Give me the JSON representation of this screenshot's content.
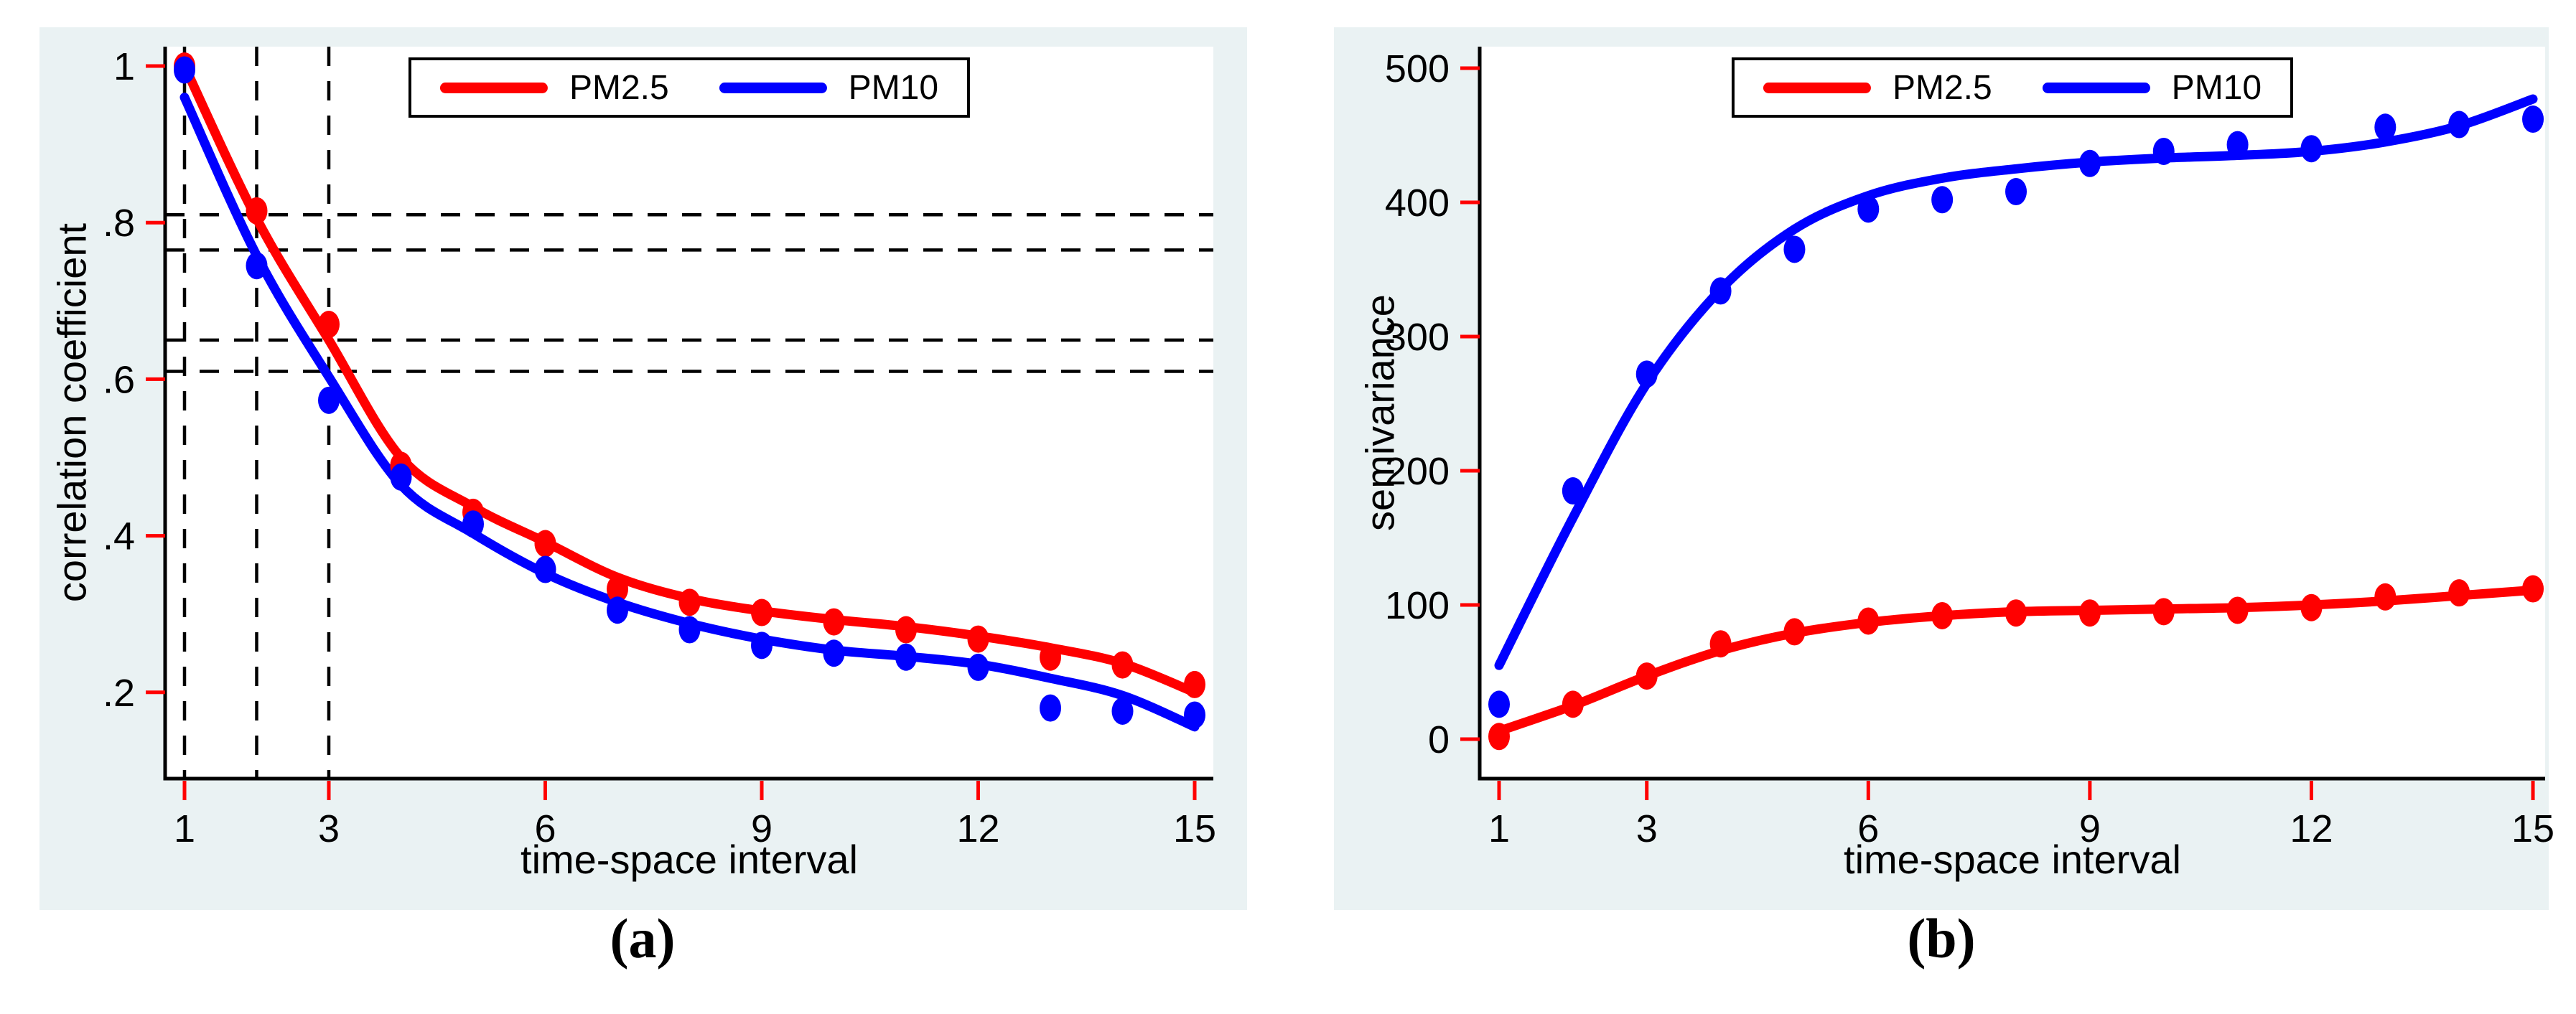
{
  "figure": {
    "caption_a": "(a)",
    "caption_b": "(b)",
    "colors": {
      "pm25": "#ff0000",
      "pm10": "#0000ff",
      "panel_background": "#eaf2f3",
      "plot_background": "#ffffff",
      "axis": "#000000",
      "tick_mark": "#ff0000",
      "reference_line": "#000000"
    }
  },
  "chart_data": [
    {
      "id": "a",
      "type": "scatter",
      "title": "",
      "xlabel": "time-space interval",
      "ylabel": "correlation coefficient",
      "x": [
        1,
        2,
        3,
        4,
        5,
        6,
        7,
        8,
        9,
        10,
        11,
        12,
        13,
        14,
        15
      ],
      "xtick_values": [
        1,
        3,
        6,
        9,
        12,
        15
      ],
      "xtick_labels": [
        "1",
        "3",
        "6",
        "9",
        "12",
        "15"
      ],
      "ytick_values": [
        0.2,
        0.4,
        0.6,
        0.8,
        1.0
      ],
      "ytick_labels": [
        ".2",
        ".4",
        ".6",
        ".8",
        "1"
      ],
      "xlim": [
        0.73,
        15.27
      ],
      "ylim": [
        0.09,
        1.025
      ],
      "grid": false,
      "legend_position": "top-center",
      "series": [
        {
          "name": "PM2.5",
          "color": "#ff0000",
          "points": [
            1.0,
            0.815,
            0.67,
            0.49,
            0.43,
            0.39,
            0.332,
            0.315,
            0.302,
            0.29,
            0.28,
            0.268,
            0.245,
            0.235,
            0.21
          ],
          "fit_line": [
            1.0,
            0.805,
            0.65,
            0.5,
            0.437,
            0.392,
            0.347,
            0.32,
            0.304,
            0.293,
            0.284,
            0.272,
            0.257,
            0.237,
            0.2
          ]
        },
        {
          "name": "PM10",
          "color": "#0000ff",
          "points": [
            0.995,
            0.745,
            0.573,
            0.475,
            0.415,
            0.357,
            0.305,
            0.28,
            0.26,
            0.25,
            0.245,
            0.232,
            0.18,
            0.176,
            0.171
          ],
          "fit_line": [
            0.96,
            0.758,
            0.603,
            0.465,
            0.403,
            0.352,
            0.315,
            0.288,
            0.268,
            0.254,
            0.246,
            0.236,
            0.218,
            0.196,
            0.156
          ]
        }
      ],
      "reference_lines": {
        "vertical_x": [
          1,
          2,
          3
        ],
        "horizontal_y": [
          0.81,
          0.765,
          0.65,
          0.61
        ]
      }
    },
    {
      "id": "b",
      "type": "scatter",
      "title": "",
      "xlabel": "time-space interval",
      "ylabel": "semivariance",
      "x": [
        1,
        2,
        3,
        4,
        5,
        6,
        7,
        8,
        9,
        10,
        11,
        12,
        13,
        14,
        15
      ],
      "xtick_values": [
        1,
        3,
        6,
        9,
        12,
        15
      ],
      "xtick_labels": [
        "1",
        "3",
        "6",
        "9",
        "12",
        "15"
      ],
      "ytick_values": [
        0,
        100,
        200,
        300,
        400,
        500
      ],
      "ytick_labels": [
        "0",
        "100",
        "200",
        "300",
        "400",
        "500"
      ],
      "xlim": [
        0.73,
        15.27
      ],
      "ylim": [
        -30,
        516
      ],
      "grid": false,
      "legend_position": "top-center",
      "series": [
        {
          "name": "PM2.5",
          "color": "#ff0000",
          "points": [
            2,
            26,
            47,
            71,
            80,
            88,
            92,
            94,
            94,
            95,
            96,
            98,
            106,
            109,
            112
          ],
          "fit_line": [
            6,
            25,
            47,
            66,
            79,
            87,
            92,
            95,
            96,
            97,
            98,
            100,
            103,
            107,
            111
          ]
        },
        {
          "name": "PM10",
          "color": "#0000ff",
          "points": [
            26,
            185,
            272,
            334,
            365,
            395,
            402,
            408,
            429,
            438,
            443,
            440,
            456,
            458,
            462
          ],
          "fit_line": [
            55,
            165,
            265,
            335,
            380,
            405,
            418,
            425,
            430,
            433,
            435,
            438,
            445,
            457,
            477
          ]
        }
      ],
      "reference_lines": {
        "vertical_x": [],
        "horizontal_y": []
      }
    }
  ]
}
